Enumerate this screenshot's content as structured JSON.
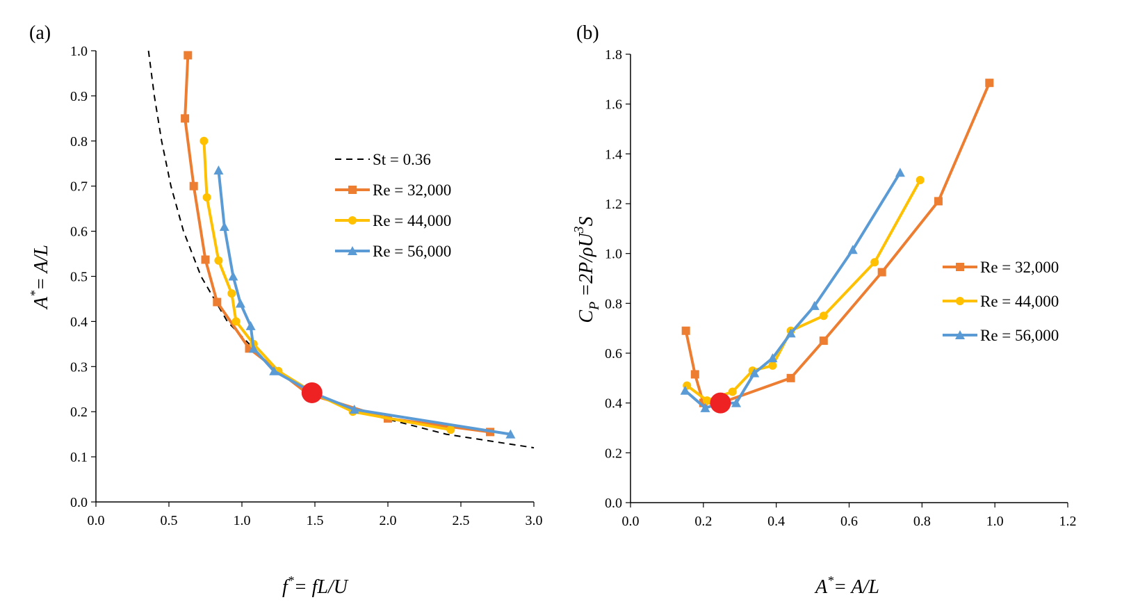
{
  "chart_data": [
    {
      "type": "line",
      "panel_label": "(a)",
      "xlabel": "f*= fL/U",
      "xlabel_parts": {
        "base": "f",
        "sup": "*",
        "rest": "=  fL/U"
      },
      "ylabel": "A*= A/L",
      "ylabel_parts": {
        "base": "A",
        "sup": "*",
        "rest": "= A/L"
      },
      "xlim": [
        0,
        3
      ],
      "ylim": [
        0,
        1
      ],
      "xticks": [
        "0.0",
        "0.5",
        "1.0",
        "1.5",
        "2.0",
        "2.5",
        "3.0"
      ],
      "yticks": [
        "0.0",
        "0.1",
        "0.2",
        "0.3",
        "0.4",
        "0.5",
        "0.6",
        "0.7",
        "0.8",
        "0.9",
        "1.0"
      ],
      "legend_position": "right",
      "series": [
        {
          "name": "St = 0.36",
          "color": "#000000",
          "style": "dashed",
          "marker": "none",
          "points": [
            [
              0.36,
              1.0
            ],
            [
              0.4,
              0.9
            ],
            [
              0.45,
              0.8
            ],
            [
              0.514,
              0.7
            ],
            [
              0.6,
              0.6
            ],
            [
              0.72,
              0.5
            ],
            [
              0.9,
              0.4
            ],
            [
              1.2,
              0.3
            ],
            [
              1.5,
              0.24
            ],
            [
              1.8,
              0.2
            ],
            [
              2.4,
              0.15
            ],
            [
              3.0,
              0.12
            ]
          ]
        },
        {
          "name": "Re = 32,000",
          "color": "#ED7D31",
          "style": "solid",
          "marker": "square",
          "points": [
            [
              0.63,
              0.99
            ],
            [
              0.61,
              0.85
            ],
            [
              0.67,
              0.7
            ],
            [
              0.75,
              0.537
            ],
            [
              0.83,
              0.443
            ],
            [
              1.05,
              0.34
            ],
            [
              1.45,
              0.24
            ],
            [
              2.0,
              0.185
            ],
            [
              2.7,
              0.155
            ]
          ]
        },
        {
          "name": "Re = 44,000",
          "color": "#FFC000",
          "style": "solid",
          "marker": "circle",
          "points": [
            [
              0.74,
              0.8
            ],
            [
              0.76,
              0.675
            ],
            [
              0.84,
              0.535
            ],
            [
              0.93,
              0.462
            ],
            [
              0.96,
              0.4
            ],
            [
              1.08,
              0.35
            ],
            [
              1.25,
              0.29
            ],
            [
              1.5,
              0.24
            ],
            [
              1.76,
              0.2
            ],
            [
              2.43,
              0.16
            ]
          ]
        },
        {
          "name": "Re = 56,000",
          "color": "#5B9BD5",
          "style": "solid",
          "marker": "triangle",
          "points": [
            [
              0.84,
              0.735
            ],
            [
              0.88,
              0.61
            ],
            [
              0.94,
              0.5
            ],
            [
              0.99,
              0.44
            ],
            [
              1.06,
              0.39
            ],
            [
              1.08,
              0.34
            ],
            [
              1.22,
              0.29
            ],
            [
              1.5,
              0.24
            ],
            [
              1.77,
              0.205
            ],
            [
              2.84,
              0.15
            ]
          ]
        }
      ],
      "highlight_point": {
        "x": 1.48,
        "y": 0.242,
        "color": "#EE2222"
      }
    },
    {
      "type": "line",
      "panel_label": "(b)",
      "xlabel": "A*= A/L",
      "xlabel_parts": {
        "base": "A",
        "sup": "*",
        "rest": "= A/L"
      },
      "ylabel": "CP =2P/ρU3S",
      "ylabel_parts": {
        "c": "C",
        "sub": "P",
        "mid": " =2P/ρU",
        "sup": "3",
        "end": "S"
      },
      "xlim": [
        0,
        1.2
      ],
      "ylim": [
        0,
        1.8
      ],
      "xticks": [
        "0.0",
        "0.2",
        "0.4",
        "0.6",
        "0.8",
        "1.0",
        "1.2"
      ],
      "yticks": [
        "0.0",
        "0.2",
        "0.4",
        "0.6",
        "0.8",
        "1.0",
        "1.2",
        "1.4",
        "1.6",
        "1.8"
      ],
      "legend_position": "right",
      "series": [
        {
          "name": "Re = 32,000",
          "color": "#ED7D31",
          "style": "solid",
          "marker": "square",
          "points": [
            [
              0.152,
              0.69
            ],
            [
              0.177,
              0.515
            ],
            [
              0.2,
              0.4
            ],
            [
              0.247,
              0.4
            ],
            [
              0.44,
              0.5
            ],
            [
              0.53,
              0.65
            ],
            [
              0.69,
              0.925
            ],
            [
              0.845,
              1.21
            ],
            [
              0.985,
              1.685
            ]
          ]
        },
        {
          "name": "Re = 44,000",
          "color": "#FFC000",
          "style": "solid",
          "marker": "circle",
          "points": [
            [
              0.155,
              0.47
            ],
            [
              0.21,
              0.41
            ],
            [
              0.28,
              0.445
            ],
            [
              0.335,
              0.53
            ],
            [
              0.39,
              0.55
            ],
            [
              0.44,
              0.69
            ],
            [
              0.53,
              0.75
            ],
            [
              0.67,
              0.965
            ],
            [
              0.795,
              1.295
            ]
          ]
        },
        {
          "name": "Re = 56,000",
          "color": "#5B9BD5",
          "style": "solid",
          "marker": "triangle",
          "points": [
            [
              0.15,
              0.45
            ],
            [
              0.205,
              0.38
            ],
            [
              0.25,
              0.4
            ],
            [
              0.29,
              0.4
            ],
            [
              0.34,
              0.52
            ],
            [
              0.39,
              0.58
            ],
            [
              0.44,
              0.68
            ],
            [
              0.505,
              0.79
            ],
            [
              0.61,
              1.015
            ],
            [
              0.74,
              1.325
            ]
          ]
        }
      ],
      "highlight_point": {
        "x": 0.247,
        "y": 0.4,
        "color": "#EE2222"
      }
    }
  ]
}
